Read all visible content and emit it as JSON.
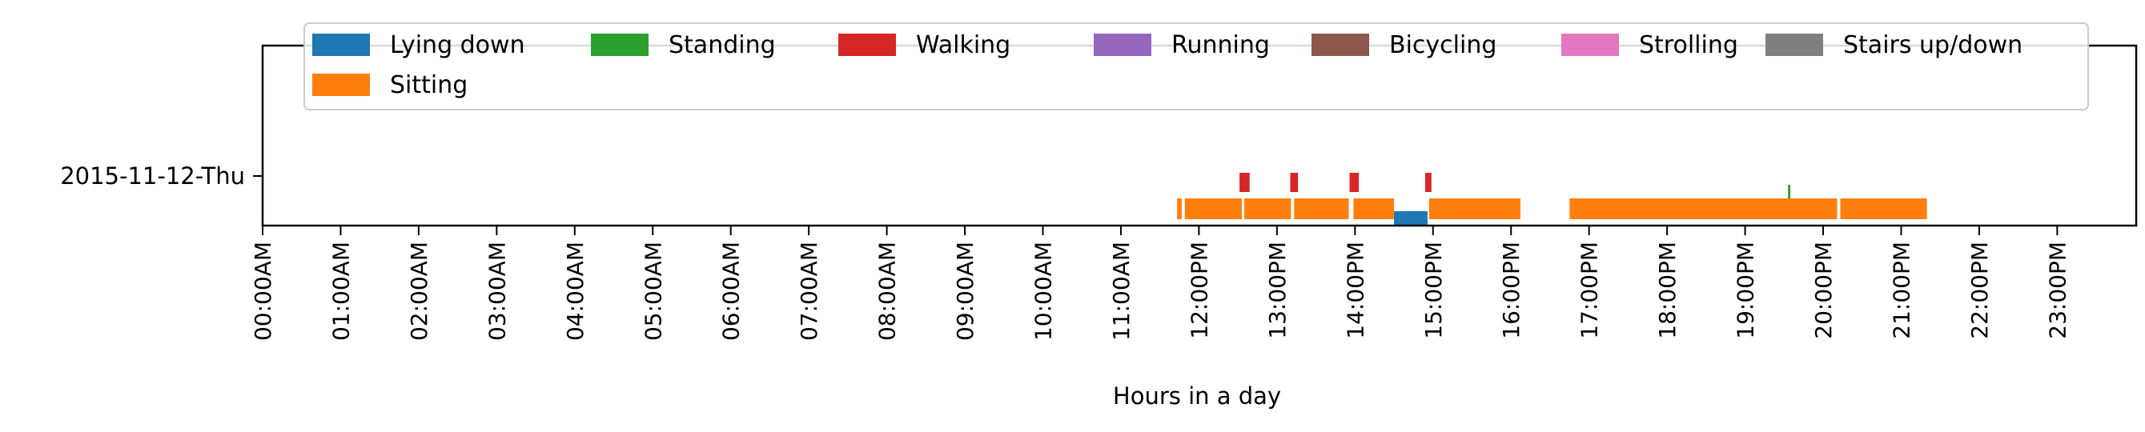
{
  "chart_data": {
    "type": "timeline",
    "xlabel": "Hours in a day",
    "ylabel": "",
    "title": "",
    "xlim": [
      0,
      24
    ],
    "grid": false,
    "legend_position": "top",
    "categories": [
      "2015-11-12-Thu"
    ],
    "x_tick_labels": [
      "00:00AM",
      "01:00AM",
      "02:00AM",
      "03:00AM",
      "04:00AM",
      "05:00AM",
      "06:00AM",
      "07:00AM",
      "08:00AM",
      "09:00AM",
      "10:00AM",
      "11:00AM",
      "12:00PM",
      "13:00PM",
      "14:00PM",
      "15:00PM",
      "16:00PM",
      "17:00PM",
      "18:00PM",
      "19:00PM",
      "20:00PM",
      "21:00PM",
      "22:00PM",
      "23:00PM"
    ],
    "legend": [
      {
        "name": "Lying down",
        "color": "#1f77b4"
      },
      {
        "name": "Standing",
        "color": "#2ca02c"
      },
      {
        "name": "Walking",
        "color": "#d62728"
      },
      {
        "name": "Running",
        "color": "#9467bd"
      },
      {
        "name": "Bicycling",
        "color": "#8c564b"
      },
      {
        "name": "Strolling",
        "color": "#e377c2"
      },
      {
        "name": "Stairs up/down",
        "color": "#7f7f7f"
      },
      {
        "name": "Sitting",
        "color": "#ff7f0e"
      }
    ],
    "series": [
      {
        "name": "Lying down",
        "color": "#1f77b4",
        "intervals": [
          [
            14.5,
            14.93
          ]
        ]
      },
      {
        "name": "Standing",
        "color": "#2ca02c",
        "intervals": [
          [
            19.55,
            19.58
          ]
        ]
      },
      {
        "name": "Walking",
        "color": "#d62728",
        "intervals": [
          [
            12.52,
            12.65
          ],
          [
            13.17,
            13.27
          ],
          [
            13.93,
            14.05
          ],
          [
            14.9,
            14.98
          ]
        ]
      },
      {
        "name": "Sitting",
        "color": "#ff7f0e",
        "intervals": [
          [
            11.72,
            11.78
          ],
          [
            11.82,
            12.55
          ],
          [
            12.58,
            13.18
          ],
          [
            13.22,
            13.92
          ],
          [
            13.98,
            14.5
          ],
          [
            14.95,
            16.12
          ],
          [
            16.75,
            20.18
          ],
          [
            20.22,
            21.33
          ]
        ]
      }
    ]
  }
}
